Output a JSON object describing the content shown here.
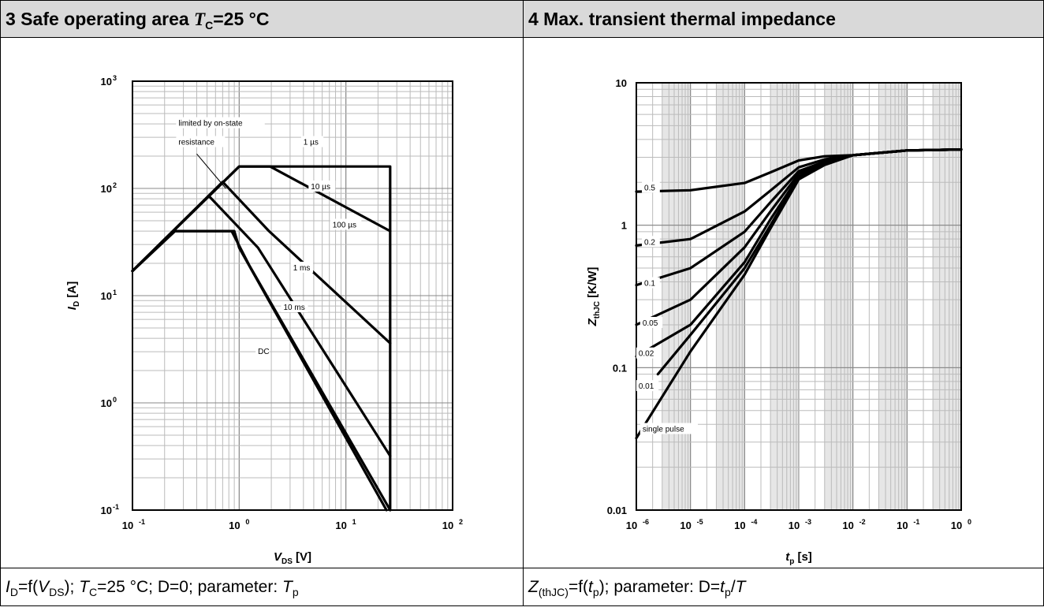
{
  "panels": {
    "left": {
      "title_prefix": "3 Safe operating area ",
      "title_T": "T",
      "title_sub": "C",
      "title_suffix": "=25 °C",
      "caption": {
        "I": "I",
        "I_sub": "D",
        "a": "=f(",
        "V": "V",
        "V_sub": "DS",
        "b": "); ",
        "T": "T",
        "T_sub": "C",
        "c": "=25 °C; D=0; parameter: ",
        "Tp": "T",
        "Tp_sub": "p"
      }
    },
    "right": {
      "title": "4 Max. transient thermal impedance",
      "caption": {
        "Z": "Z",
        "Z_sub": "(thJC)",
        "a": "=f(",
        "t": "t",
        "t_sub": "p",
        "b": "); parameter: D=",
        "t2": "t",
        "t2_sub": "p",
        "c": "/",
        "T": "T"
      }
    }
  },
  "chart_data": [
    {
      "type": "line",
      "scale": "log-log",
      "grid": true,
      "xlabel": {
        "sym": "V",
        "sub": "DS",
        "unit": " [V]"
      },
      "ylabel": {
        "sym": "I",
        "sub": "D",
        "unit": " [A]"
      },
      "xlim": [
        0.1,
        100
      ],
      "ylim": [
        0.1,
        1000
      ],
      "xticks": [
        {
          "v": 0.1,
          "base": "10",
          "exp": "-1"
        },
        {
          "v": 1,
          "base": "10",
          "exp": "0"
        },
        {
          "v": 10,
          "base": "10",
          "exp": "1"
        },
        {
          "v": 100,
          "base": "10",
          "exp": "2"
        }
      ],
      "yticks": [
        {
          "v": 0.1,
          "base": "10",
          "exp": "-1"
        },
        {
          "v": 1,
          "base": "10",
          "exp": "0"
        },
        {
          "v": 10,
          "base": "10",
          "exp": "1"
        },
        {
          "v": 100,
          "base": "10",
          "exp": "2"
        },
        {
          "v": 1000,
          "base": "10",
          "exp": "3"
        }
      ],
      "series": [
        {
          "name": "1 µs",
          "x": [
            0.1,
            1.0,
            26,
            26
          ],
          "y": [
            17,
            160,
            160,
            0.1
          ]
        },
        {
          "name": "10 µs",
          "x": [
            0.1,
            1.0,
            1.95,
            26
          ],
          "y": [
            17,
            160,
            160,
            40
          ]
        },
        {
          "name": "100 µs",
          "x": [
            0.1,
            0.7,
            1.9,
            26
          ],
          "y": [
            17,
            115,
            40,
            3.6
          ]
        },
        {
          "name": "1 ms",
          "x": [
            0.1,
            0.52,
            1.5,
            26
          ],
          "y": [
            17,
            85,
            28,
            0.32
          ]
        },
        {
          "name": "10 ms",
          "x": [
            0.1,
            0.25,
            0.85,
            1.25,
            26
          ],
          "y": [
            17,
            40,
            40,
            19,
            0.1
          ]
        },
        {
          "name": "DC",
          "x": [
            0.1,
            0.25,
            0.9,
            1.0,
            24
          ],
          "y": [
            17,
            40,
            40,
            28,
            0.1
          ]
        }
      ],
      "annotations": [
        {
          "text": "limited by on-state",
          "x": 0.27,
          "y": 390
        },
        {
          "text": "resistance",
          "x": 0.27,
          "y": 260
        },
        {
          "text": "1 µs",
          "x": 4.0,
          "y": 260
        },
        {
          "text": "10 µs",
          "x": 4.7,
          "y": 100
        },
        {
          "text": "100 µs",
          "x": 7.5,
          "y": 44
        },
        {
          "text": "1 ms",
          "x": 3.2,
          "y": 17.5
        },
        {
          "text": "10 ms",
          "x": 2.6,
          "y": 7.5
        },
        {
          "text": "DC",
          "x": 1.5,
          "y": 2.9
        }
      ]
    },
    {
      "type": "line",
      "scale": "log-log",
      "grid": true,
      "xlabel": {
        "sym": "t",
        "sub": "p",
        "unit": " [s]"
      },
      "ylabel": {
        "sym": "Z",
        "sub": "thJC",
        "unit": " [K/W]"
      },
      "xlim": [
        1e-06,
        1
      ],
      "ylim": [
        0.01,
        10
      ],
      "xticks": [
        {
          "v": 1e-06,
          "base": "10",
          "exp": "-6"
        },
        {
          "v": 1e-05,
          "base": "10",
          "exp": "-5"
        },
        {
          "v": 0.0001,
          "base": "10",
          "exp": "-4"
        },
        {
          "v": 0.001,
          "base": "10",
          "exp": "-3"
        },
        {
          "v": 0.01,
          "base": "10",
          "exp": "-2"
        },
        {
          "v": 0.1,
          "base": "10",
          "exp": "-1"
        },
        {
          "v": 1,
          "base": "10",
          "exp": "0"
        }
      ],
      "yticks": [
        {
          "v": 0.01,
          "label": "0.01"
        },
        {
          "v": 0.1,
          "label": "0.1"
        },
        {
          "v": 1,
          "label": "1"
        },
        {
          "v": 10,
          "label": "10"
        }
      ],
      "series": [
        {
          "name": "0.5",
          "x": [
            1e-06,
            1e-05,
            0.0001,
            0.0003,
            0.001,
            0.003,
            0.01,
            0.1,
            1
          ],
          "y": [
            1.72,
            1.76,
            1.98,
            2.35,
            2.85,
            3.05,
            3.1,
            3.35,
            3.4
          ]
        },
        {
          "name": "0.2",
          "x": [
            1e-06,
            1e-05,
            0.0001,
            0.0003,
            0.001,
            0.003,
            0.01,
            0.1,
            1
          ],
          "y": [
            0.72,
            0.8,
            1.25,
            1.75,
            2.55,
            2.9,
            3.1,
            3.35,
            3.4
          ]
        },
        {
          "name": "0.1",
          "x": [
            1e-06,
            1e-05,
            0.0001,
            0.0003,
            0.001,
            0.003,
            0.01,
            0.1,
            1
          ],
          "y": [
            0.38,
            0.5,
            0.9,
            1.45,
            2.4,
            2.8,
            3.1,
            3.35,
            3.4
          ]
        },
        {
          "name": "0.05",
          "x": [
            1e-06,
            1e-05,
            0.0001,
            0.0003,
            0.001,
            0.003,
            0.01,
            0.1,
            1
          ],
          "y": [
            0.2,
            0.3,
            0.7,
            1.25,
            2.3,
            2.75,
            3.1,
            3.35,
            3.4
          ]
        },
        {
          "name": "0.02",
          "x": [
            1e-06,
            1e-05,
            0.0001,
            0.0003,
            0.001,
            0.003,
            0.01,
            0.1,
            1
          ],
          "y": [
            0.12,
            0.2,
            0.55,
            1.1,
            2.2,
            2.7,
            3.1,
            3.35,
            3.4
          ]
        },
        {
          "name": "0.01",
          "x": [
            2.5e-06,
            1e-05,
            0.0001,
            0.0003,
            0.001,
            0.003,
            0.01,
            0.1,
            1
          ],
          "y": [
            0.09,
            0.17,
            0.5,
            1.0,
            2.15,
            2.7,
            3.1,
            3.35,
            3.4
          ]
        },
        {
          "name": "single pulse",
          "x": [
            1e-06,
            1e-05,
            0.0001,
            0.0003,
            0.001,
            0.003,
            0.01,
            0.1,
            1
          ],
          "y": [
            0.032,
            0.13,
            0.45,
            0.95,
            2.1,
            2.65,
            3.1,
            3.35,
            3.4
          ]
        }
      ],
      "annotations": [
        {
          "text": "0.5",
          "x": 1.4e-06,
          "y": 1.78
        },
        {
          "text": "0.2",
          "x": 1.4e-06,
          "y": 0.74
        },
        {
          "text": "0.1",
          "x": 1.4e-06,
          "y": 0.38
        },
        {
          "text": "0.05",
          "x": 1.3e-06,
          "y": 0.2
        },
        {
          "text": "0.02",
          "x": 1.1e-06,
          "y": 0.122
        },
        {
          "text": "0.01",
          "x": 1.1e-06,
          "y": 0.072
        },
        {
          "text": "single pulse",
          "x": 1.3e-06,
          "y": 0.036
        }
      ]
    }
  ]
}
